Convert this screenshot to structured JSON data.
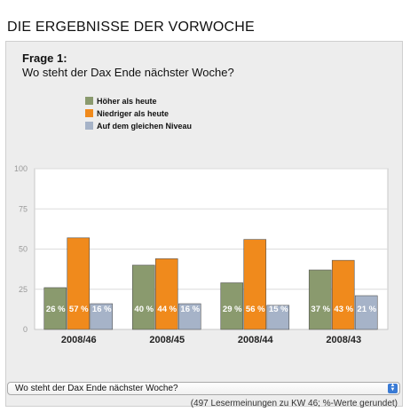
{
  "page": {
    "title": "DIE ERGEBNISSE DER VORWOCHE"
  },
  "question": {
    "label": "Frage 1:",
    "text": "Wo steht der Dax Ende nächster Woche?"
  },
  "colors": {
    "hoeher": "#8a9a6e",
    "niedriger": "#f08a1c",
    "gleich": "#a6b3c8"
  },
  "chart_data": {
    "type": "bar",
    "categories": [
      "2008/46",
      "2008/45",
      "2008/44",
      "2008/43"
    ],
    "series": [
      {
        "name": "Höher als heute",
        "values": [
          26,
          40,
          29,
          37
        ],
        "labels": [
          "26 %",
          "40 %",
          "29 %",
          "37 %"
        ]
      },
      {
        "name": "Niedriger als heute",
        "values": [
          57,
          44,
          56,
          43
        ],
        "labels": [
          "57 %",
          "44 %",
          "56 %",
          "43 %"
        ]
      },
      {
        "name": "Auf dem gleichen Niveau",
        "values": [
          16,
          16,
          15,
          21
        ],
        "labels": [
          "16 %",
          "16 %",
          "15 %",
          "21 %"
        ]
      }
    ],
    "yticks": [
      "0",
      "25",
      "50",
      "75",
      "100"
    ],
    "ylim": [
      0,
      100
    ],
    "grid": true,
    "legend": "top-left"
  },
  "selector": {
    "value": "Wo steht der Dax Ende nächster Woche?"
  },
  "footnote": "(497 Lesermeinungen zu KW 46; %-Werte gerundet)"
}
